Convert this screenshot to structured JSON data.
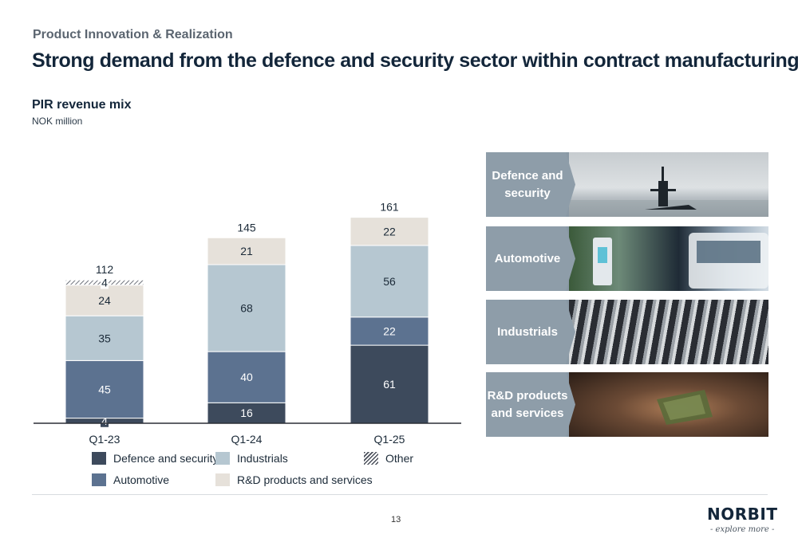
{
  "header": {
    "section": "Product Innovation & Realization",
    "title": "Strong demand from the defence and security sector within contract manufacturing"
  },
  "chart_data": {
    "type": "bar",
    "stacked": true,
    "title": "PIR revenue mix",
    "subtitle": "NOK million",
    "categories": [
      "Q1-23",
      "Q1-24",
      "Q1-25"
    ],
    "totals": [
      "112",
      "145",
      "161"
    ],
    "series": [
      {
        "name": "Defence and security",
        "values": [
          4,
          16,
          61
        ],
        "color": "#3d4a5c"
      },
      {
        "name": "Automotive",
        "values": [
          45,
          40,
          22
        ],
        "color": "#5c7290"
      },
      {
        "name": "Industrials",
        "values": [
          35,
          68,
          56
        ],
        "color": "#b6c7d1"
      },
      {
        "name": "R&D products and services",
        "values": [
          24,
          21,
          22
        ],
        "color": "#e6e1da"
      },
      {
        "name": "Other",
        "values": [
          4,
          0,
          0
        ],
        "color": "#4a4f5a",
        "pattern": "hatch"
      }
    ],
    "grid": false
  },
  "legend": {
    "defence": "Defence and security",
    "industrials": "Industrials",
    "other": "Other",
    "automotive": "Automotive",
    "rd": "R&D products and services"
  },
  "segments": {
    "defence": "Defence and\nsecurity",
    "automotive": "Automotive",
    "industrials": "Industrials",
    "rd": "R&D products\nand services"
  },
  "footer": {
    "page": "13",
    "logo": "NORBIT",
    "tagline": "- explore more -"
  }
}
